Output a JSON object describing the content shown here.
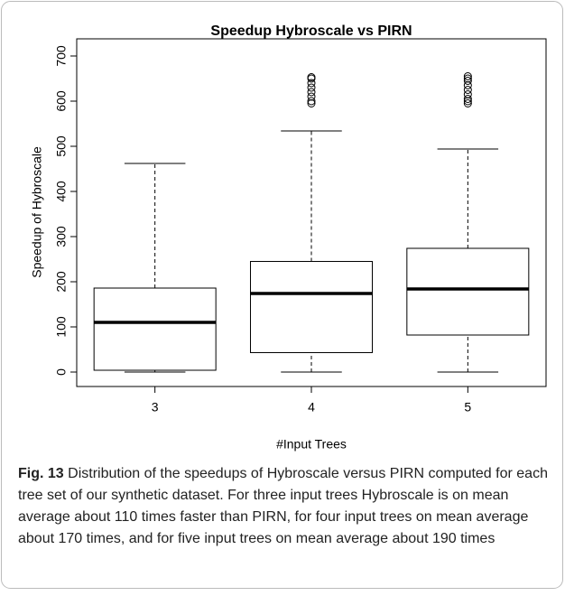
{
  "chart_data": {
    "type": "box",
    "title": "Speedup Hybroscale vs PIRN",
    "y_label": "Speedup of Hybroscale",
    "x_label": "#Input Trees",
    "categories": [
      "3",
      "4",
      "5"
    ],
    "boxes": [
      {
        "whisker_low": 0,
        "q1": 4,
        "median": 110,
        "q3": 186,
        "whisker_high": 462,
        "outliers": []
      },
      {
        "whisker_low": 0,
        "q1": 43,
        "median": 174,
        "q3": 245,
        "whisker_high": 534,
        "outliers": [
          595,
          600,
          610,
          620,
          630,
          640,
          650,
          653
        ]
      },
      {
        "whisker_low": 0,
        "q1": 82,
        "median": 184,
        "q3": 274,
        "whisker_high": 494,
        "outliers": [
          595,
          600,
          605,
          615,
          625,
          635,
          645,
          650,
          655
        ]
      }
    ],
    "ylim": [
      -28,
      728
    ],
    "yticks": [
      0,
      100,
      200,
      300,
      400,
      500,
      600,
      700
    ],
    "color": "#000000"
  },
  "caption": {
    "label": "Fig. 13",
    "text": "Distribution of the speedups of Hybroscale versus PIRN computed for each tree set of our synthetic dataset. For three input trees Hybroscale is on mean average about 110 times faster than PIRN, for four input trees on mean average about 170 times, and for five input trees on mean average about 190 times"
  }
}
